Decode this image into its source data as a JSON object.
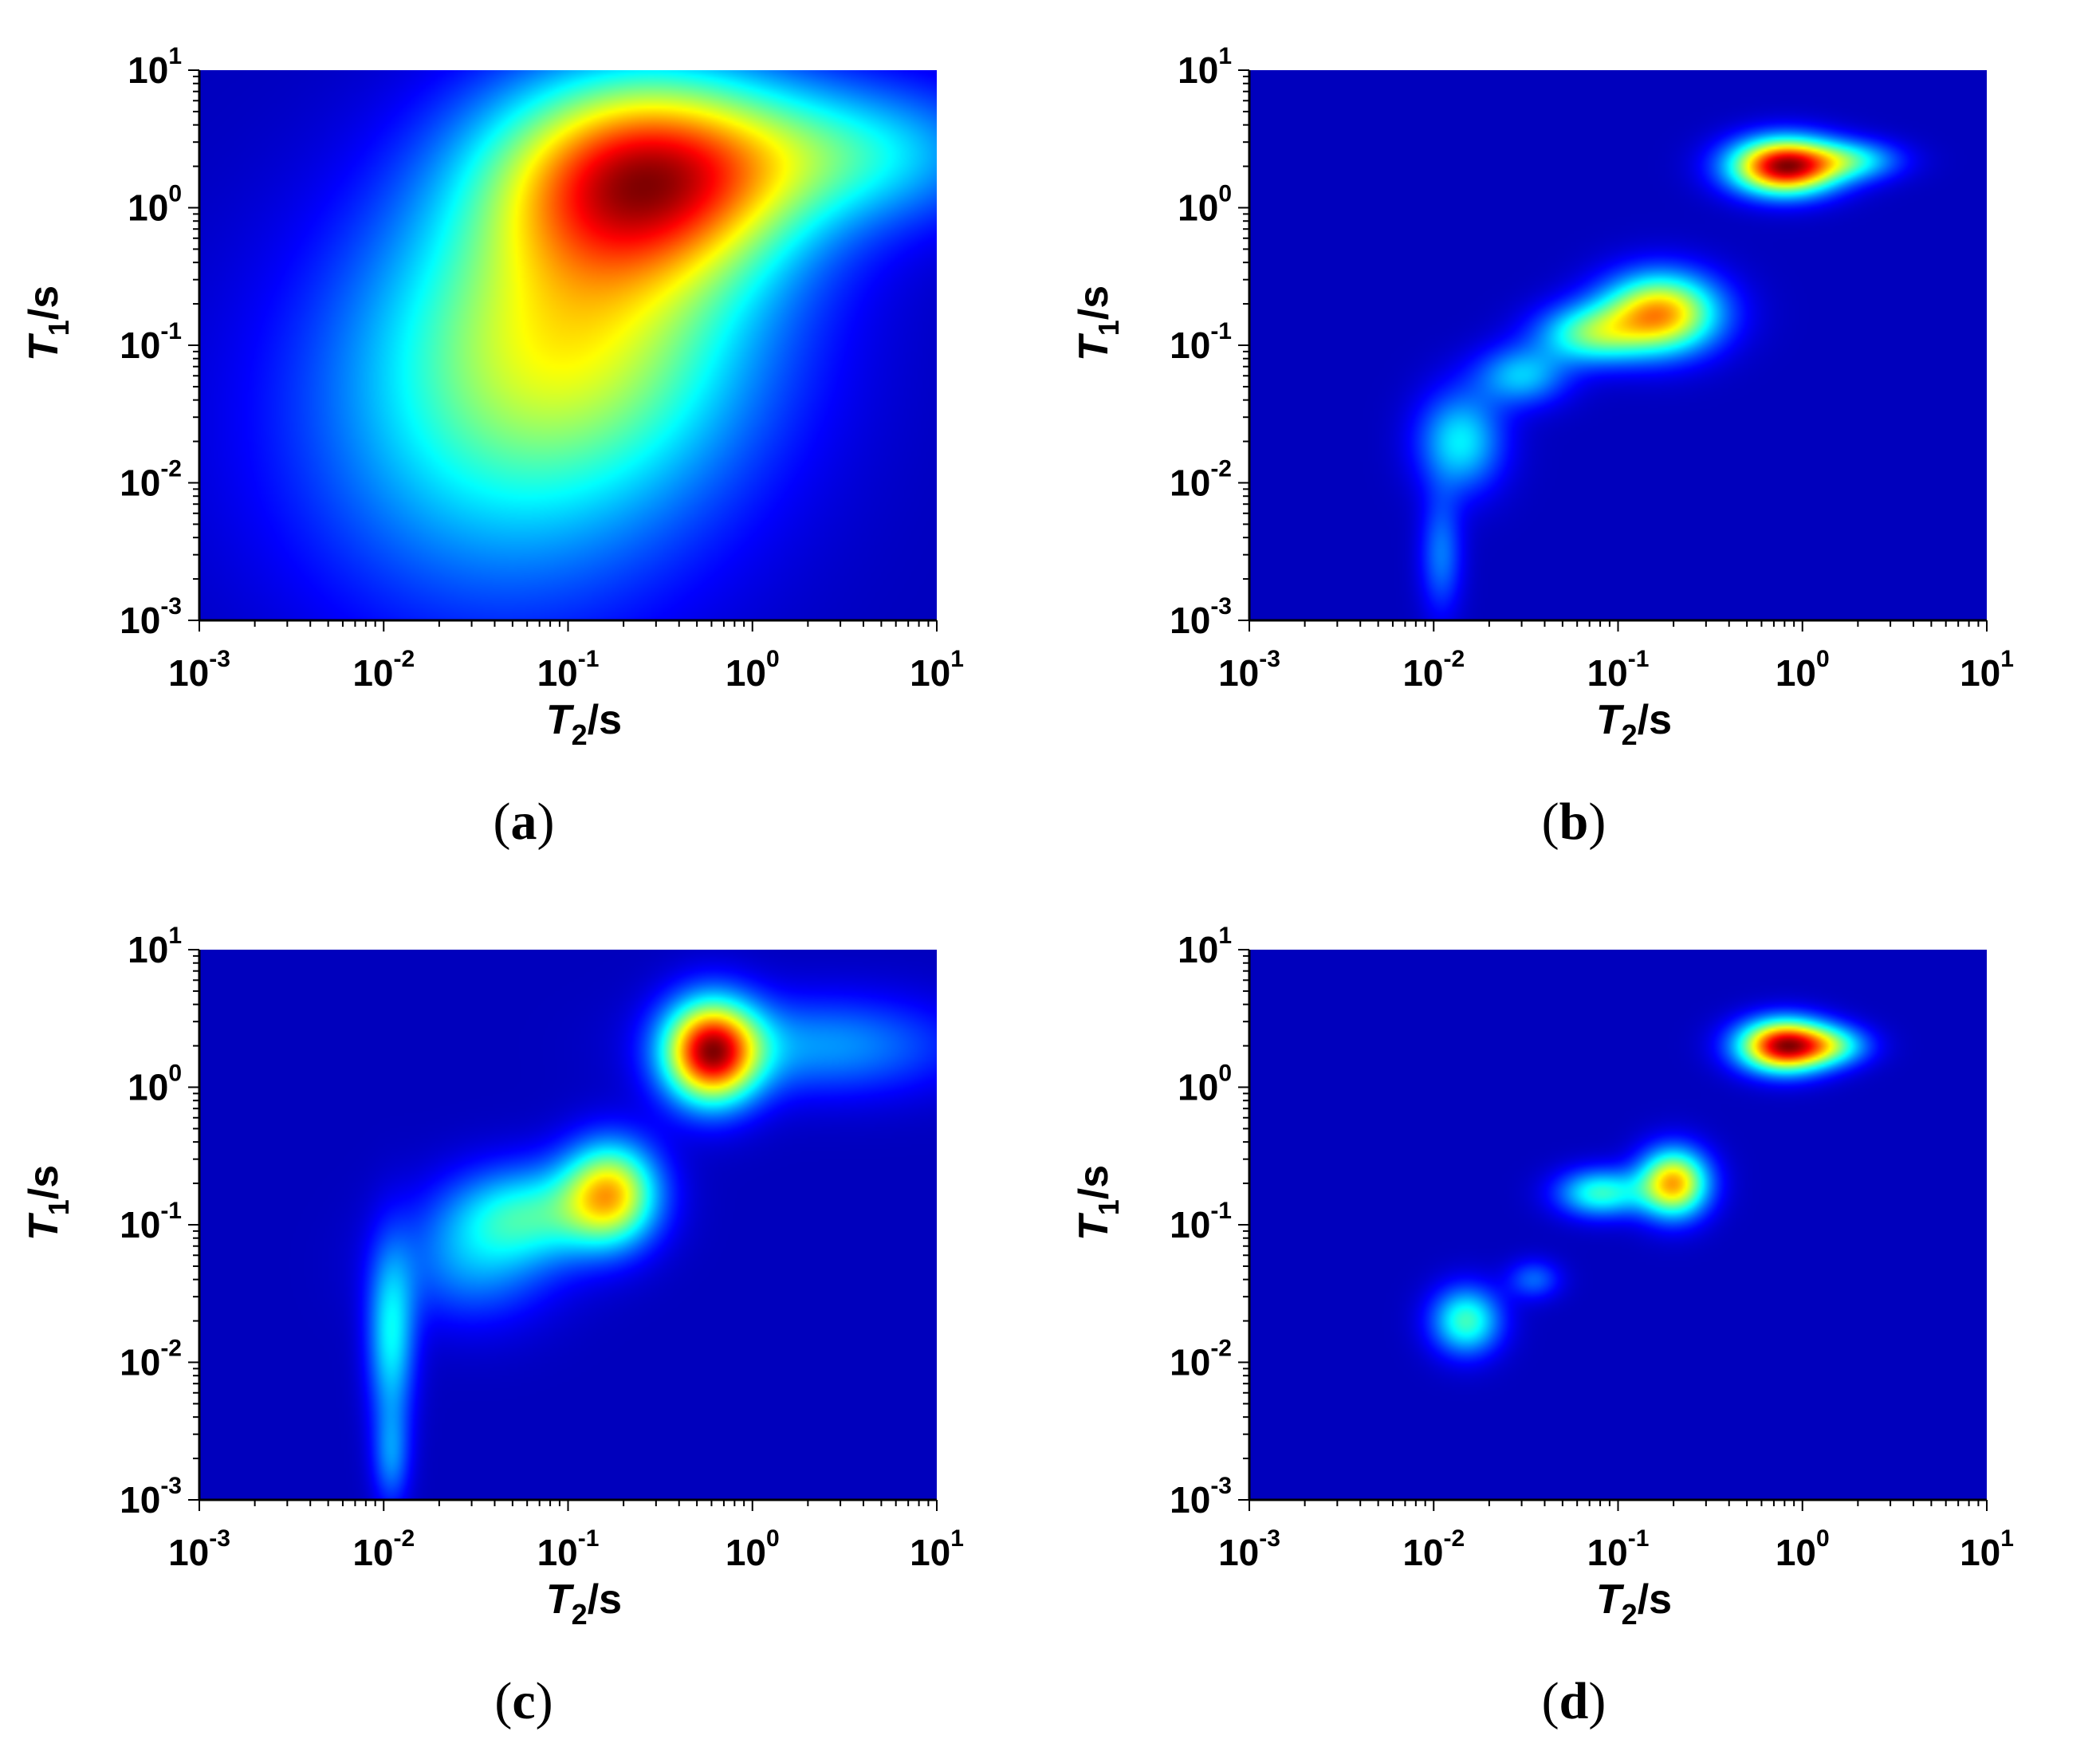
{
  "figure": {
    "panels": [
      {
        "id": "a",
        "caption": "(a)"
      },
      {
        "id": "b",
        "caption": "(b)"
      },
      {
        "id": "c",
        "caption": "(c)"
      },
      {
        "id": "d",
        "caption": "(d)"
      }
    ]
  },
  "chart_data": [
    {
      "panel": "(a)",
      "type": "heatmap",
      "title": "",
      "xlabel": {
        "symbol": "T",
        "subscript": "2",
        "unit": "/s"
      },
      "ylabel": {
        "symbol": "T",
        "subscript": "1",
        "unit": "/s"
      },
      "xscale": "log",
      "yscale": "log",
      "xlim": [
        0.001,
        10
      ],
      "ylim": [
        0.001,
        10
      ],
      "x_ticks": [
        {
          "base": "10",
          "exp": "-3"
        },
        {
          "base": "10",
          "exp": "-2"
        },
        {
          "base": "10",
          "exp": "-1"
        },
        {
          "base": "10",
          "exp": "0"
        },
        {
          "base": "10",
          "exp": "1"
        }
      ],
      "y_ticks": [
        {
          "base": "10",
          "exp": "-3"
        },
        {
          "base": "10",
          "exp": "-2"
        },
        {
          "base": "10",
          "exp": "-1"
        },
        {
          "base": "10",
          "exp": "0"
        },
        {
          "base": "10",
          "exp": "1"
        }
      ],
      "colormap": "jet",
      "background_color": "#00008f",
      "grid": false,
      "peaks": [
        {
          "t2": 0.28,
          "t1": 1.8,
          "amplitude": 1.0,
          "spread_t2_decades": 0.58,
          "spread_t1_decades": 0.52
        },
        {
          "t2": 0.12,
          "t1": 0.15,
          "amplitude": 0.55,
          "spread_t2_decades": 0.7,
          "spread_t1_decades": 0.8
        },
        {
          "t2": 0.04,
          "t1": 0.02,
          "amplitude": 0.32,
          "spread_t2_decades": 0.8,
          "spread_t1_decades": 1.0
        },
        {
          "t2": 4.0,
          "t1": 2.5,
          "amplitude": 0.35,
          "spread_t2_decades": 0.55,
          "spread_t1_decades": 0.35
        }
      ]
    },
    {
      "panel": "(b)",
      "type": "heatmap",
      "title": "",
      "xlabel": {
        "symbol": "T",
        "subscript": "2",
        "unit": "/s"
      },
      "ylabel": {
        "symbol": "T",
        "subscript": "1",
        "unit": "/s"
      },
      "xscale": "log",
      "yscale": "log",
      "xlim": [
        0.001,
        10
      ],
      "ylim": [
        0.001,
        10
      ],
      "x_ticks": [
        {
          "base": "10",
          "exp": "-3"
        },
        {
          "base": "10",
          "exp": "-2"
        },
        {
          "base": "10",
          "exp": "-1"
        },
        {
          "base": "10",
          "exp": "0"
        },
        {
          "base": "10",
          "exp": "1"
        }
      ],
      "y_ticks": [
        {
          "base": "10",
          "exp": "-3"
        },
        {
          "base": "10",
          "exp": "-2"
        },
        {
          "base": "10",
          "exp": "-1"
        },
        {
          "base": "10",
          "exp": "0"
        },
        {
          "base": "10",
          "exp": "1"
        }
      ],
      "colormap": "jet",
      "background_color": "#00008f",
      "grid": false,
      "peaks": [
        {
          "t2": 0.8,
          "t1": 2.0,
          "amplitude": 1.0,
          "spread_t2_decades": 0.2,
          "spread_t1_decades": 0.14
        },
        {
          "t2": 1.9,
          "t1": 2.2,
          "amplitude": 0.3,
          "spread_t2_decades": 0.18,
          "spread_t1_decades": 0.1
        },
        {
          "t2": 0.17,
          "t1": 0.17,
          "amplitude": 0.72,
          "spread_t2_decades": 0.22,
          "spread_t1_decades": 0.2
        },
        {
          "t2": 0.07,
          "t1": 0.12,
          "amplitude": 0.4,
          "spread_t2_decades": 0.2,
          "spread_t1_decades": 0.15
        },
        {
          "t2": 0.03,
          "t1": 0.06,
          "amplitude": 0.28,
          "spread_t2_decades": 0.17,
          "spread_t1_decades": 0.15
        },
        {
          "t2": 0.014,
          "t1": 0.02,
          "amplitude": 0.33,
          "spread_t2_decades": 0.16,
          "spread_t1_decades": 0.25
        },
        {
          "t2": 0.011,
          "t1": 0.003,
          "amplitude": 0.2,
          "spread_t2_decades": 0.08,
          "spread_t1_decades": 0.3
        }
      ]
    },
    {
      "panel": "(c)",
      "type": "heatmap",
      "title": "",
      "xlabel": {
        "symbol": "T",
        "subscript": "2",
        "unit": "/s"
      },
      "ylabel": {
        "symbol": "T",
        "subscript": "1",
        "unit": "/s"
      },
      "xscale": "log",
      "yscale": "log",
      "xlim": [
        0.001,
        10
      ],
      "ylim": [
        0.001,
        10
      ],
      "x_ticks": [
        {
          "base": "10",
          "exp": "-3"
        },
        {
          "base": "10",
          "exp": "-2"
        },
        {
          "base": "10",
          "exp": "-1"
        },
        {
          "base": "10",
          "exp": "0"
        },
        {
          "base": "10",
          "exp": "1"
        }
      ],
      "y_ticks": [
        {
          "base": "10",
          "exp": "-3"
        },
        {
          "base": "10",
          "exp": "-2"
        },
        {
          "base": "10",
          "exp": "-1"
        },
        {
          "base": "10",
          "exp": "0"
        },
        {
          "base": "10",
          "exp": "1"
        }
      ],
      "colormap": "jet",
      "background_color": "#00008f",
      "grid": false,
      "peaks": [
        {
          "t2": 0.6,
          "t1": 1.8,
          "amplitude": 1.0,
          "spread_t2_decades": 0.18,
          "spread_t1_decades": 0.26
        },
        {
          "t2": 2.5,
          "t1": 2.0,
          "amplitude": 0.25,
          "spread_t2_decades": 0.5,
          "spread_t1_decades": 0.25
        },
        {
          "t2": 0.17,
          "t1": 0.17,
          "amplitude": 0.68,
          "spread_t2_decades": 0.18,
          "spread_t1_decades": 0.26
        },
        {
          "t2": 0.06,
          "t1": 0.12,
          "amplitude": 0.38,
          "spread_t2_decades": 0.3,
          "spread_t1_decades": 0.25
        },
        {
          "t2": 0.03,
          "t1": 0.05,
          "amplitude": 0.22,
          "spread_t2_decades": 0.3,
          "spread_t1_decades": 0.3
        },
        {
          "t2": 0.011,
          "t1": 0.015,
          "amplitude": 0.36,
          "spread_t2_decades": 0.09,
          "spread_t1_decades": 0.45
        },
        {
          "t2": 0.011,
          "t1": 0.002,
          "amplitude": 0.2,
          "spread_t2_decades": 0.07,
          "spread_t1_decades": 0.25
        }
      ]
    },
    {
      "panel": "(d)",
      "type": "heatmap",
      "title": "",
      "xlabel": {
        "symbol": "T",
        "subscript": "2",
        "unit": "/s"
      },
      "ylabel": {
        "symbol": "T",
        "subscript": "1",
        "unit": "/s"
      },
      "xscale": "log",
      "yscale": "log",
      "xlim": [
        0.001,
        10
      ],
      "ylim": [
        0.001,
        10
      ],
      "x_ticks": [
        {
          "base": "10",
          "exp": "-3"
        },
        {
          "base": "10",
          "exp": "-2"
        },
        {
          "base": "10",
          "exp": "-1"
        },
        {
          "base": "10",
          "exp": "0"
        },
        {
          "base": "10",
          "exp": "1"
        }
      ],
      "y_ticks": [
        {
          "base": "10",
          "exp": "-3"
        },
        {
          "base": "10",
          "exp": "-2"
        },
        {
          "base": "10",
          "exp": "-1"
        },
        {
          "base": "10",
          "exp": "0"
        },
        {
          "base": "10",
          "exp": "1"
        }
      ],
      "colormap": "jet",
      "background_color": "#00008f",
      "grid": false,
      "peaks": [
        {
          "t2": 0.8,
          "t1": 2.0,
          "amplitude": 1.0,
          "spread_t2_decades": 0.17,
          "spread_t1_decades": 0.13
        },
        {
          "t2": 1.5,
          "t1": 2.0,
          "amplitude": 0.3,
          "spread_t2_decades": 0.14,
          "spread_t1_decades": 0.1
        },
        {
          "t2": 0.2,
          "t1": 0.2,
          "amplitude": 0.72,
          "spread_t2_decades": 0.13,
          "spread_t1_decades": 0.17
        },
        {
          "t2": 0.08,
          "t1": 0.17,
          "amplitude": 0.4,
          "spread_t2_decades": 0.16,
          "spread_t1_decades": 0.12
        },
        {
          "t2": 0.015,
          "t1": 0.02,
          "amplitude": 0.42,
          "spread_t2_decades": 0.13,
          "spread_t1_decades": 0.17
        },
        {
          "t2": 0.035,
          "t1": 0.04,
          "amplitude": 0.18,
          "spread_t2_decades": 0.1,
          "spread_t1_decades": 0.1
        }
      ]
    }
  ]
}
